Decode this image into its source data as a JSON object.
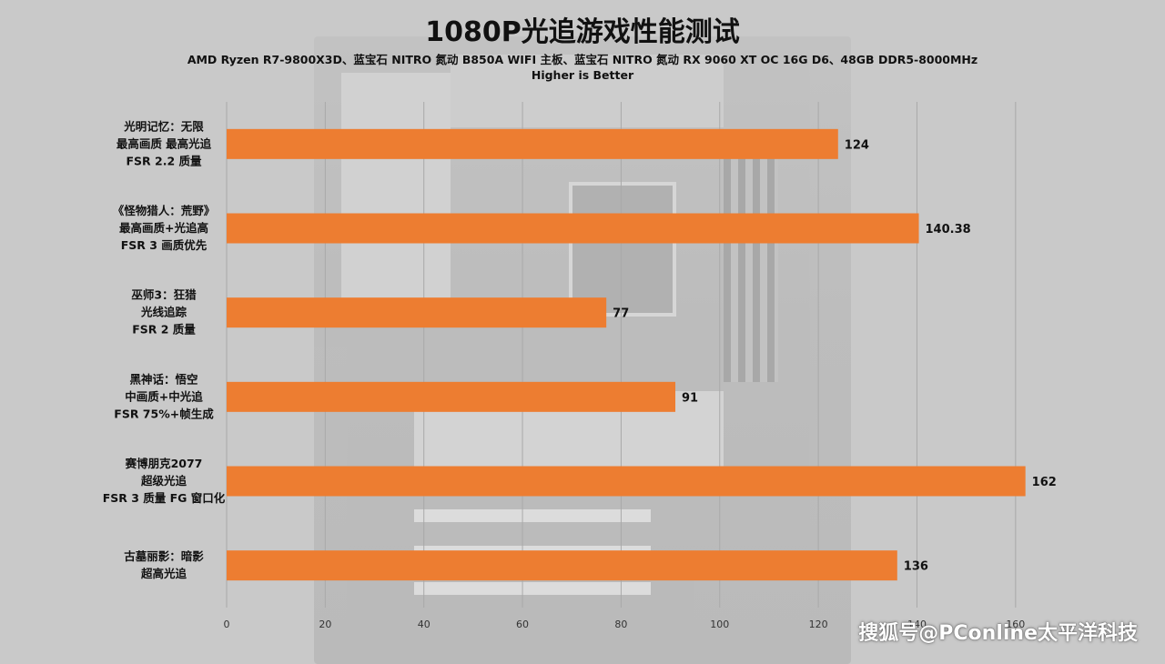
{
  "title": "1080P光追游戏性能测试",
  "subtitle": "AMD Ryzen R7-9800X3D、蓝宝石 NITRO 氮动 B850A WIFI 主板、蓝宝石 NITRO 氮动 RX 9060 XT OC 16G D6、48GB DDR5-8000MHz",
  "subtitle2": "Higher is Better",
  "watermark": "搜狐号@PConline太平洋科技",
  "chart_data": {
    "type": "bar",
    "orientation": "horizontal",
    "categories": [
      [
        "光明记忆：无限",
        "最高画质 最高光追",
        "FSR 2.2 质量"
      ],
      [
        "《怪物猎人：荒野》",
        "最高画质+光追高",
        "FSR 3 画质优先"
      ],
      [
        "巫师3：狂猎",
        "光线追踪",
        "FSR 2 质量"
      ],
      [
        "黑神话：悟空",
        "中画质+中光追",
        "FSR 75%+帧生成"
      ],
      [
        "赛博朋克2077",
        "超级光追",
        "FSR 3 质量 FG 窗口化"
      ],
      [
        "古墓丽影：暗影",
        "超高光追"
      ]
    ],
    "values": [
      124,
      140.38,
      77,
      91,
      162,
      136
    ],
    "value_labels": [
      "124",
      "140.38",
      "77",
      "91",
      "162",
      "136"
    ],
    "xticks": [
      0,
      20,
      40,
      60,
      80,
      100,
      120,
      140,
      160
    ],
    "xlim": [
      0,
      170
    ],
    "bar_color": "#ed7d31",
    "grid": true
  }
}
